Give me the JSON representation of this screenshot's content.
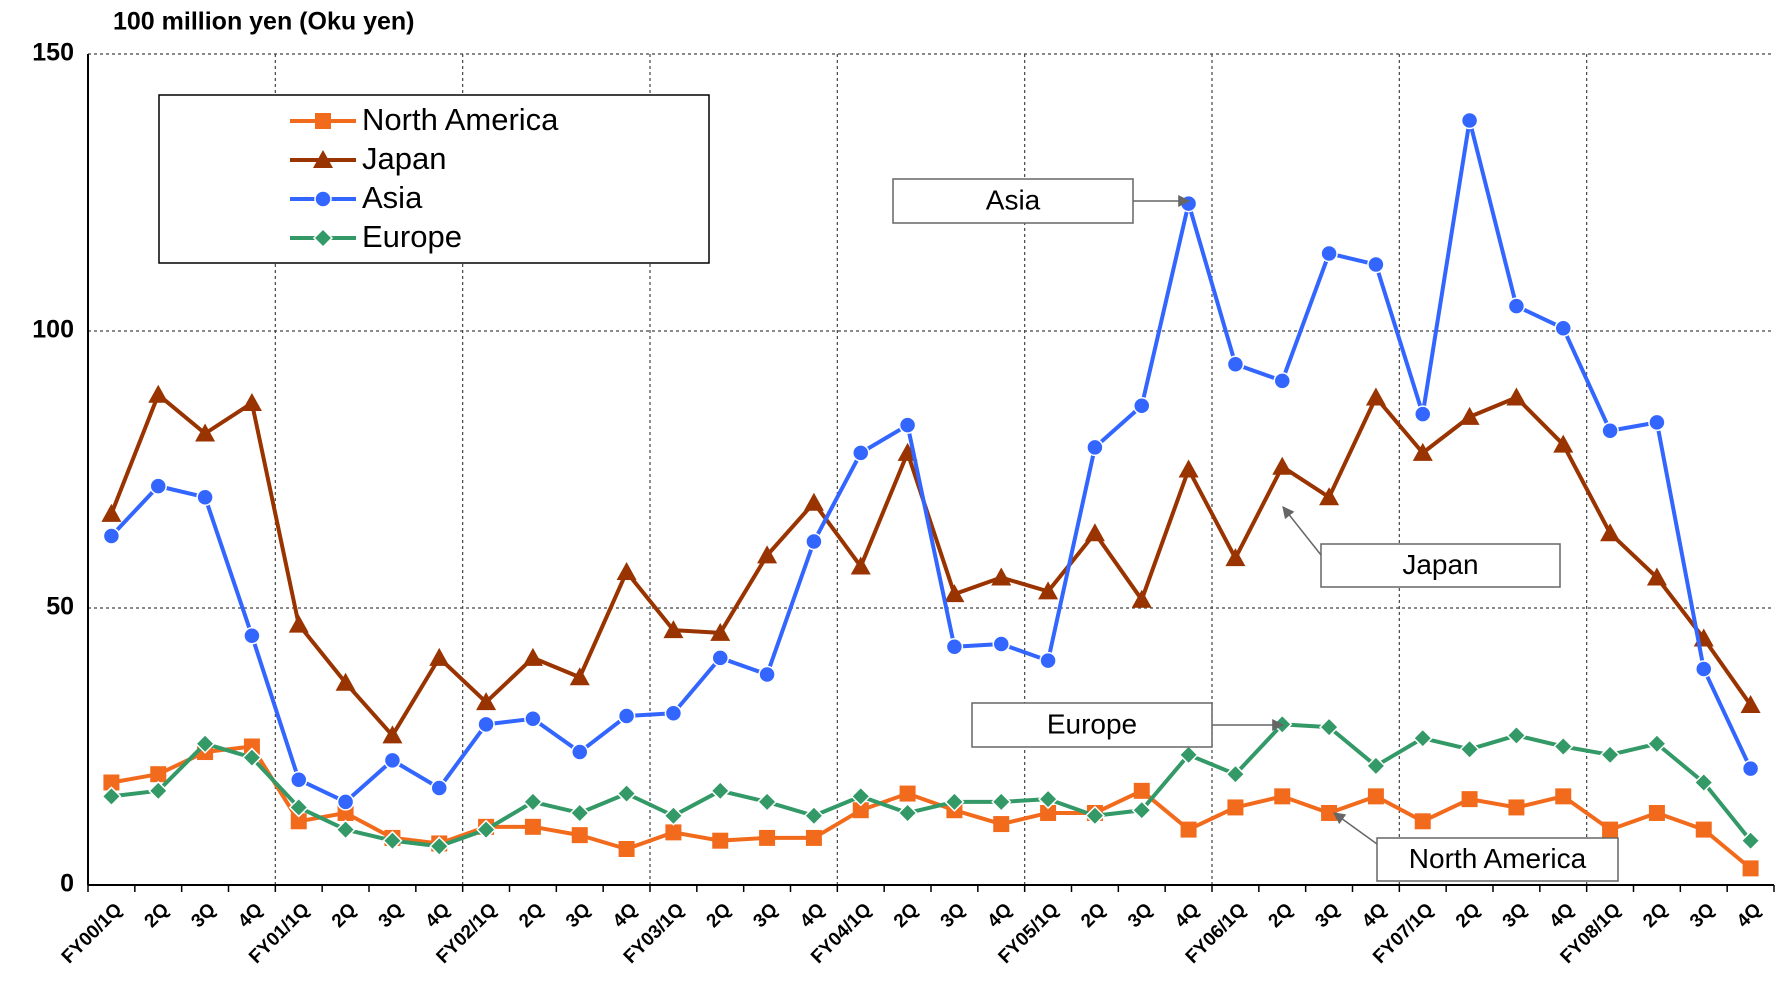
{
  "chart_data": {
    "type": "line",
    "title": "100 million yen (Oku yen)",
    "categories": [
      "FY00/1Q",
      "2Q",
      "3Q",
      "4Q",
      "FY01/1Q",
      "2Q",
      "3Q",
      "4Q",
      "FY02/1Q",
      "2Q",
      "3Q",
      "4Q",
      "FY03/1Q",
      "2Q",
      "3Q",
      "4Q",
      "FY04/1Q",
      "2Q",
      "3Q",
      "4Q",
      "FY05/1Q",
      "2Q",
      "3Q",
      "4Q",
      "FY06/1Q",
      "2Q",
      "3Q",
      "4Q",
      "FY07/1Q",
      "2Q",
      "3Q",
      "4Q",
      "FY08/1Q",
      "2Q",
      "3Q",
      "4Q"
    ],
    "series": [
      {
        "name": "North America",
        "color": "#f26b1d",
        "marker": "square",
        "values": [
          18.5,
          20,
          24,
          25,
          11.5,
          13,
          8.5,
          7.5,
          10.5,
          10.5,
          9,
          6.5,
          9.5,
          8,
          8.5,
          8.5,
          13.5,
          16.5,
          13.5,
          11,
          13,
          13,
          17,
          10,
          14,
          16,
          13,
          16,
          11.5,
          15.5,
          14,
          16,
          10,
          13,
          10,
          3
        ]
      },
      {
        "name": "Japan",
        "color": "#993300",
        "marker": "triangle",
        "values": [
          67,
          88.5,
          81.5,
          87,
          47,
          36.5,
          27,
          41,
          33,
          41,
          37.5,
          56.5,
          46,
          45.5,
          59.5,
          69,
          57.5,
          78,
          52.5,
          55.5,
          53,
          63.5,
          51.5,
          75,
          59,
          75.5,
          70,
          88,
          78,
          84.5,
          88,
          79.5,
          63.5,
          55.5,
          44.5,
          32.5
        ]
      },
      {
        "name": "Asia",
        "color": "#3366ff",
        "marker": "circle",
        "values": [
          63,
          72,
          70,
          45,
          19,
          15,
          22.5,
          17.5,
          29,
          30,
          24,
          30.5,
          31,
          41,
          38,
          62,
          78,
          83,
          43,
          43.5,
          40.5,
          79,
          86.5,
          123,
          94,
          91,
          114,
          112,
          85,
          138,
          104.5,
          100.5,
          82,
          83.5,
          39,
          21
        ]
      },
      {
        "name": "Europe",
        "color": "#339966",
        "marker": "diamond",
        "values": [
          16,
          17,
          25.5,
          23,
          14,
          10,
          8,
          7,
          10,
          15,
          13,
          16.5,
          12.5,
          17,
          15,
          12.5,
          16,
          13,
          15,
          15,
          15.5,
          12.5,
          13.5,
          23.5,
          20,
          29,
          28.5,
          21.5,
          26.5,
          24.5,
          27,
          25,
          23.5,
          25.5,
          18.5,
          8
        ]
      }
    ],
    "ylim": [
      0,
      150
    ],
    "yticks": [
      0,
      50,
      100,
      150
    ],
    "grid": true,
    "annotations": [
      "Asia",
      "Japan",
      "Europe",
      "North America"
    ]
  }
}
